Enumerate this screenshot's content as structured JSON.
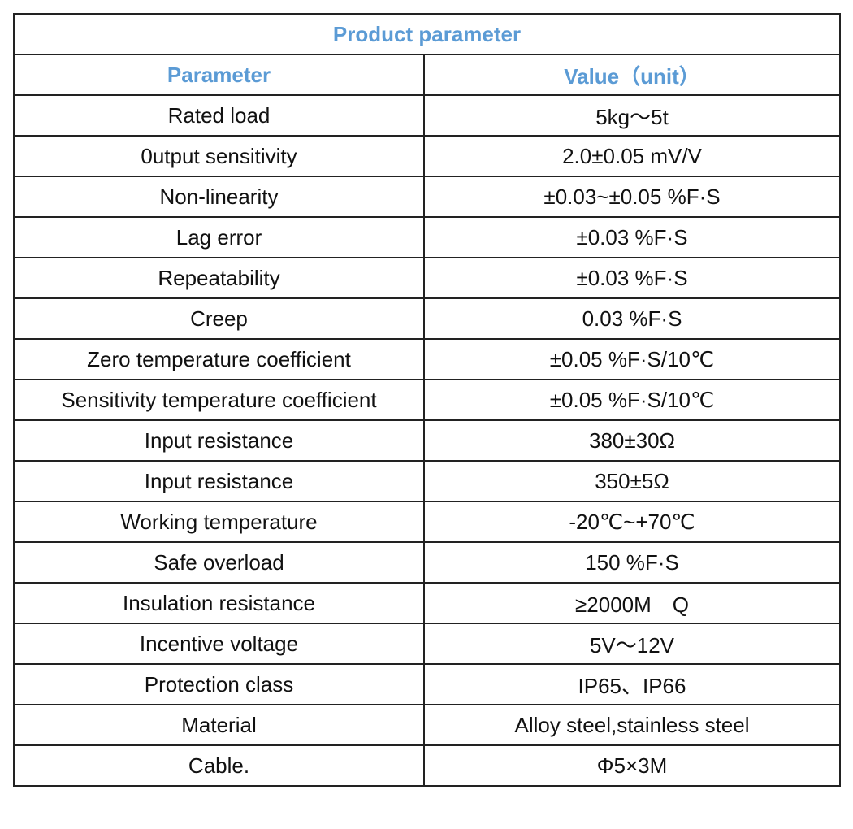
{
  "table": {
    "title": "Product parameter",
    "header": [
      "Parameter",
      "Value（unit）"
    ],
    "rows": [
      [
        "Rated load",
        "5kg～5t"
      ],
      [
        "0utput sensitivity",
        "2.0±0.05 mV/V"
      ],
      [
        "Non-linearity",
        "±0.03~±0.05 %F·S"
      ],
      [
        "Lag error",
        "±0.03 %F·S"
      ],
      [
        "Repeatability",
        "±0.03 %F·S"
      ],
      [
        "Creep",
        "0.03 %F·S"
      ],
      [
        "Zero temperature coefficient",
        "±0.05 %F·S/10℃"
      ],
      [
        "Sensitivity temperature coefficient",
        "±0.05 %F·S/10℃"
      ],
      [
        "Input resistance",
        "380±30Ω"
      ],
      [
        "Input resistance",
        "350±5Ω"
      ],
      [
        "Working temperature",
        "-20℃~+70℃"
      ],
      [
        "Safe overload",
        "150 %F·S"
      ],
      [
        "Insulation resistance",
        "≥2000M　Q"
      ],
      [
        "Incentive voltage",
        "5V～12V"
      ],
      [
        "Protection class",
        "IP65、IP66"
      ],
      [
        "Material",
        "Alloy steel,stainless steel"
      ],
      [
        "Cable.",
        "Φ5×3M"
      ]
    ]
  }
}
